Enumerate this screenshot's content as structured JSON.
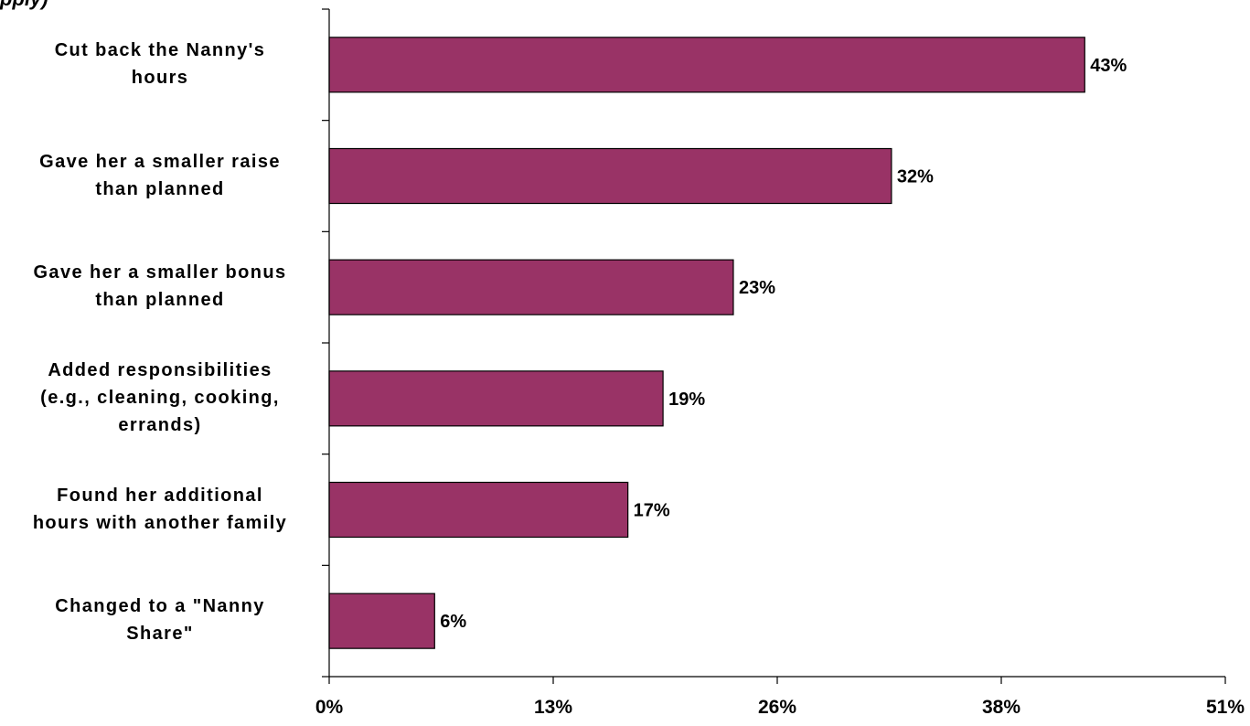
{
  "chart_data": {
    "type": "bar",
    "orientation": "horizontal",
    "title_fragment": "pply)",
    "categories": [
      [
        "Cut back the Nanny's",
        "hours"
      ],
      [
        "Gave her a smaller raise",
        "than planned"
      ],
      [
        "Gave her a smaller bonus",
        "than planned"
      ],
      [
        "Added responsibilities",
        "(e.g., cleaning, cooking,",
        "errands)"
      ],
      [
        "Found her additional",
        "hours with another family"
      ],
      [
        "Changed to a \"Nanny",
        "Share\""
      ]
    ],
    "values": [
      43,
      32,
      23,
      19,
      17,
      6
    ],
    "value_labels": [
      "43%",
      "32%",
      "23%",
      "19%",
      "17%",
      "6%"
    ],
    "x_tick_labels": [
      "0%",
      "13%",
      "26%",
      "38%",
      "51%"
    ],
    "xlim": [
      0,
      51
    ],
    "grid": false,
    "bar_color": "#993366"
  }
}
